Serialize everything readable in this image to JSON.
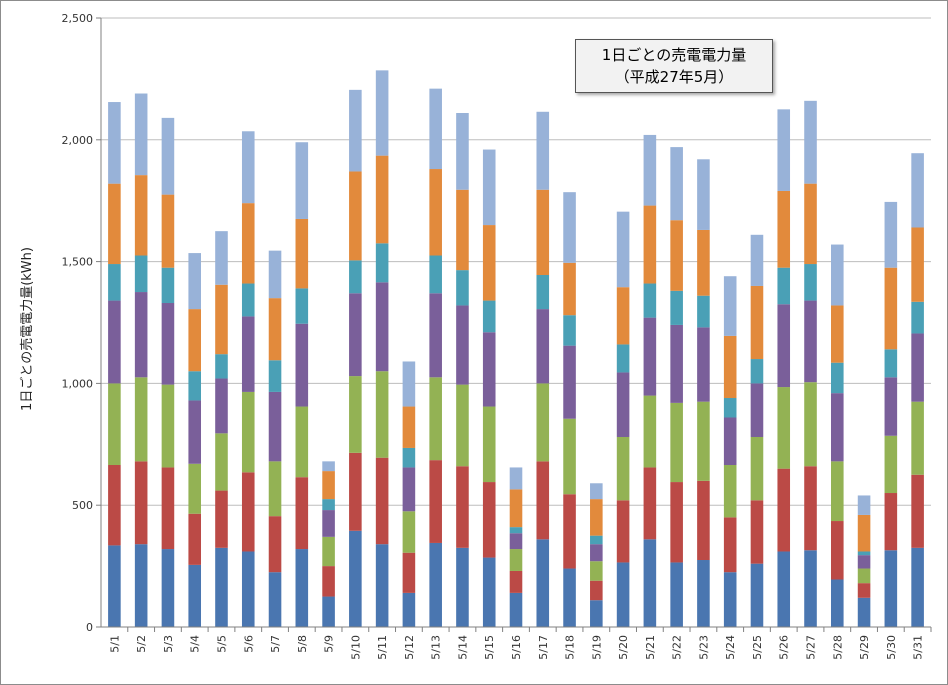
{
  "chart_data": {
    "type": "bar",
    "stacked": true,
    "title": "1日ごとの売電電力量",
    "subtitle": "（平成27年5月）",
    "xlabel": "",
    "ylabel": "1日ごとの売電電力量(kWh)",
    "ylim": [
      0,
      2500
    ],
    "yticks": [
      0,
      500,
      1000,
      1500,
      2000,
      2500
    ],
    "ytick_labels": [
      "0",
      "500",
      "1,000",
      "1,500",
      "2,000",
      "2,500"
    ],
    "grid": true,
    "legend": "none",
    "categories": [
      "5/1",
      "5/2",
      "5/3",
      "5/4",
      "5/5",
      "5/6",
      "5/7",
      "5/8",
      "5/9",
      "5/10",
      "5/11",
      "5/12",
      "5/13",
      "5/14",
      "5/15",
      "5/16",
      "5/17",
      "5/18",
      "5/19",
      "5/20",
      "5/21",
      "5/22",
      "5/23",
      "5/24",
      "5/25",
      "5/26",
      "5/27",
      "5/28",
      "5/29",
      "5/30",
      "5/31"
    ],
    "colors": [
      "#4a76b0",
      "#bb4a46",
      "#93b254",
      "#7a5f9a",
      "#4aa0b6",
      "#e28a3c",
      "#98b2d8"
    ],
    "series": [
      {
        "values": [
          335,
          340,
          320,
          255,
          325,
          310,
          225,
          320,
          125,
          395,
          340,
          140,
          345,
          325,
          285,
          140,
          360,
          240,
          110,
          265,
          360,
          265,
          275,
          225,
          260,
          310,
          315,
          195,
          120,
          315,
          325
        ]
      },
      {
        "values": [
          330,
          340,
          335,
          210,
          235,
          325,
          230,
          295,
          125,
          320,
          355,
          165,
          340,
          335,
          310,
          90,
          320,
          305,
          80,
          255,
          295,
          330,
          325,
          225,
          260,
          340,
          345,
          240,
          60,
          235,
          300
        ]
      },
      {
        "values": [
          335,
          345,
          340,
          205,
          235,
          330,
          225,
          290,
          120,
          315,
          355,
          170,
          340,
          335,
          310,
          90,
          320,
          310,
          80,
          260,
          295,
          325,
          325,
          215,
          260,
          335,
          345,
          245,
          60,
          235,
          300
        ]
      },
      {
        "values": [
          340,
          350,
          335,
          260,
          225,
          310,
          285,
          340,
          110,
          340,
          365,
          180,
          345,
          325,
          305,
          65,
          305,
          300,
          70,
          265,
          320,
          320,
          305,
          195,
          220,
          340,
          335,
          280,
          55,
          240,
          280
        ]
      },
      {
        "values": [
          150,
          150,
          145,
          120,
          100,
          135,
          130,
          145,
          45,
          135,
          160,
          80,
          155,
          145,
          130,
          25,
          140,
          125,
          35,
          115,
          140,
          140,
          130,
          80,
          100,
          150,
          150,
          125,
          15,
          115,
          130
        ]
      },
      {
        "values": [
          330,
          330,
          300,
          255,
          285,
          330,
          255,
          285,
          115,
          365,
          360,
          170,
          355,
          330,
          310,
          155,
          350,
          215,
          150,
          235,
          320,
          290,
          270,
          255,
          300,
          315,
          330,
          235,
          150,
          335,
          305
        ]
      },
      {
        "values": [
          335,
          335,
          315,
          230,
          220,
          295,
          195,
          315,
          40,
          335,
          350,
          185,
          330,
          315,
          310,
          90,
          320,
          290,
          65,
          310,
          290,
          300,
          290,
          245,
          210,
          335,
          340,
          250,
          80,
          270,
          305
        ]
      }
    ]
  }
}
